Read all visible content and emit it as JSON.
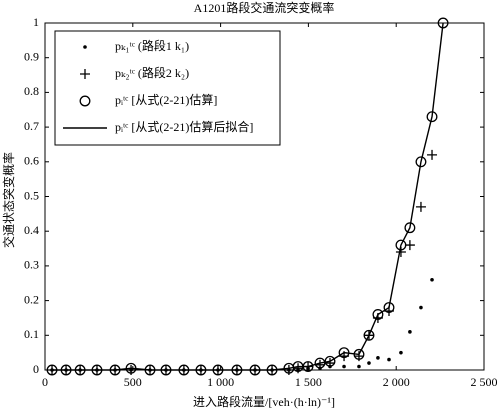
{
  "chart_data": {
    "type": "line",
    "title": "A1201路段交通流突变概率",
    "x_label": "进入路段流量/[veh·(h·ln)⁻¹]",
    "y_label": "交通状态突变概率",
    "x": [
      40,
      120,
      200,
      296,
      399,
      490,
      598,
      689,
      791,
      888,
      985,
      1093,
      1196,
      1293,
      1389,
      1441,
      1498,
      1566,
      1623,
      1703,
      1788,
      1845,
      1896,
      1959,
      2027,
      2078,
      2141,
      2204,
      2267
    ],
    "series": [
      {
        "name": "pₖ₁ᵗᶜ (路段1 k₁)",
        "color": "#000000",
        "marker": "dot",
        "values": [
          0,
          0,
          0,
          0,
          0,
          0,
          0,
          0,
          0,
          0,
          0,
          0,
          0,
          0,
          0,
          0,
          0.005,
          0.005,
          0.01,
          0.01,
          0.01,
          0.02,
          0.035,
          0.03,
          0.05,
          0.11,
          0.18,
          0.26,
          null
        ]
      },
      {
        "name": "pₖ₂ᵗᶜ (路段2 k₂)",
        "color": "#000000",
        "marker": "plus",
        "values": [
          0,
          0,
          0,
          0,
          0,
          0,
          0,
          0,
          0,
          0,
          0,
          0,
          0,
          0,
          0,
          0.005,
          0.01,
          0.015,
          0.02,
          0.04,
          0.04,
          0.1,
          0.15,
          0.17,
          0.34,
          0.36,
          0.47,
          0.62,
          null
        ]
      },
      {
        "name": "pᵢᵗᶜ [从式(2-21)估算]",
        "color": "#000000",
        "marker": "circle",
        "values": [
          0,
          0,
          0,
          0,
          0,
          0.005,
          0,
          0,
          0,
          0,
          0,
          0,
          0,
          0,
          0.005,
          0.01,
          0.01,
          0.02,
          0.025,
          0.05,
          0.045,
          0.1,
          0.16,
          0.18,
          0.36,
          0.41,
          0.6,
          0.73,
          1
        ]
      },
      {
        "name": "pᵢᵗᶜ [从式(2-21)估算后拟合]",
        "color": "#000000",
        "marker": "line",
        "values": [
          0,
          0,
          0,
          0,
          0,
          0.005,
          0,
          0,
          0,
          0,
          0,
          0,
          0,
          0,
          0.005,
          0.01,
          0.01,
          0.02,
          0.025,
          0.05,
          0.045,
          0.1,
          0.16,
          0.18,
          0.36,
          0.41,
          0.6,
          0.73,
          1
        ]
      }
    ],
    "xlim": [
      0,
      2500
    ],
    "xticks": [
      0,
      500,
      {
        "value": 1000,
        "label": "1 000"
      },
      {
        "value": 1500,
        "label": "1 500"
      },
      {
        "value": 2000,
        "label": "2 000"
      },
      {
        "value": 2500,
        "label": "2 500"
      }
    ],
    "ylim": [
      0,
      1
    ],
    "yticks": [
      0,
      0.1,
      0.2,
      0.3,
      0.4,
      0.5,
      0.6,
      0.7,
      0.8,
      0.9,
      1
    ],
    "legend": "upper left",
    "grid": false
  }
}
